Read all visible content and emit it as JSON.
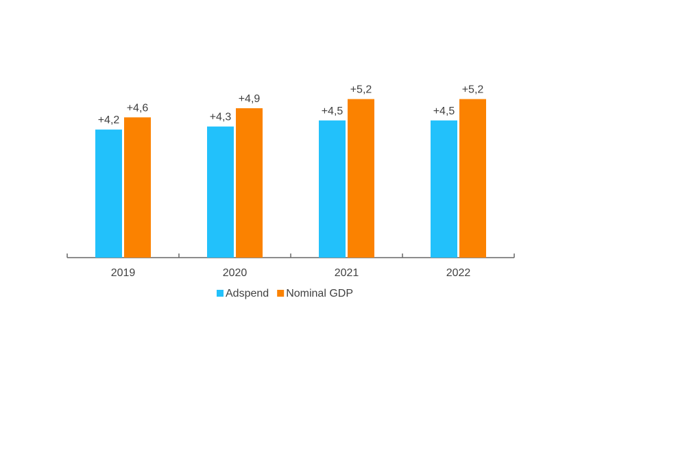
{
  "chart_data": {
    "type": "bar",
    "title": "",
    "xlabel": "",
    "ylabel": "",
    "categories": [
      "2019",
      "2020",
      "2021",
      "2022"
    ],
    "series": [
      {
        "name": "Adspend",
        "color": "#22c1fb",
        "values": [
          4.2,
          4.3,
          4.5,
          4.5
        ],
        "labels": [
          "+4,2",
          "+4,3",
          "+4,5",
          "+4,5"
        ]
      },
      {
        "name": "Nominal GDP",
        "color": "#fb8200",
        "values": [
          4.6,
          4.9,
          5.2,
          5.2
        ],
        "labels": [
          "+4,6",
          "+4,9",
          "+5,2",
          "+5,2"
        ]
      }
    ],
    "ylim": [
      0,
      5.5
    ],
    "grid": false,
    "legend_position": "bottom"
  }
}
